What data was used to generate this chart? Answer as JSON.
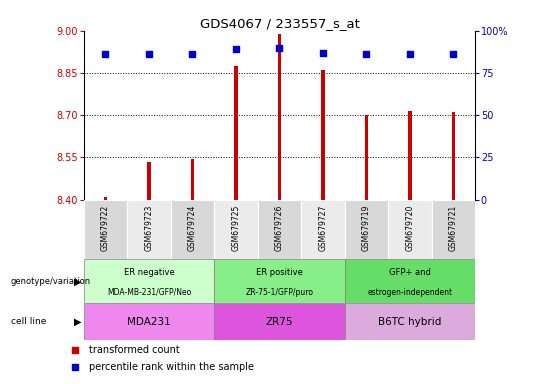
{
  "title": "GDS4067 / 233557_s_at",
  "samples": [
    "GSM679722",
    "GSM679723",
    "GSM679724",
    "GSM679725",
    "GSM679726",
    "GSM679727",
    "GSM679719",
    "GSM679720",
    "GSM679721"
  ],
  "transformed_count": [
    8.41,
    8.535,
    8.545,
    8.875,
    8.99,
    8.86,
    8.7,
    8.715,
    8.71
  ],
  "percentile_rank": [
    86,
    86,
    86,
    89,
    90,
    87,
    86,
    86,
    86
  ],
  "ylim_left": [
    8.4,
    9.0
  ],
  "ylim_right": [
    0,
    100
  ],
  "yticks_left": [
    8.4,
    8.55,
    8.7,
    8.85,
    9.0
  ],
  "yticks_right": [
    0,
    25,
    50,
    75,
    100
  ],
  "bar_color": "#cc0000",
  "dot_color": "#0000cc",
  "genotype_groups": [
    {
      "label": "ER negative",
      "sublabel": "MDA-MB-231/GFP/Neo",
      "start": 0,
      "end": 3,
      "color": "#ccffcc"
    },
    {
      "label": "ER positive",
      "sublabel": "ZR-75-1/GFP/puro",
      "start": 3,
      "end": 6,
      "color": "#88ee88"
    },
    {
      "label": "GFP+ and",
      "sublabel": "estrogen-independent",
      "start": 6,
      "end": 9,
      "color": "#66dd66"
    }
  ],
  "cell_line_groups": [
    {
      "label": "MDA231",
      "start": 0,
      "end": 3,
      "color": "#ee88ee"
    },
    {
      "label": "ZR75",
      "start": 3,
      "end": 6,
      "color": "#dd55dd"
    },
    {
      "label": "B6TC hybrid",
      "start": 6,
      "end": 9,
      "color": "#ddaadd"
    }
  ],
  "legend_items": [
    {
      "label": "transformed count",
      "color": "#cc0000"
    },
    {
      "label": "percentile rank within the sample",
      "color": "#0000cc"
    }
  ],
  "left_label_color": "#cc0000",
  "right_label_color": "#0000cc",
  "bar_width": 0.08,
  "dot_size": 18
}
